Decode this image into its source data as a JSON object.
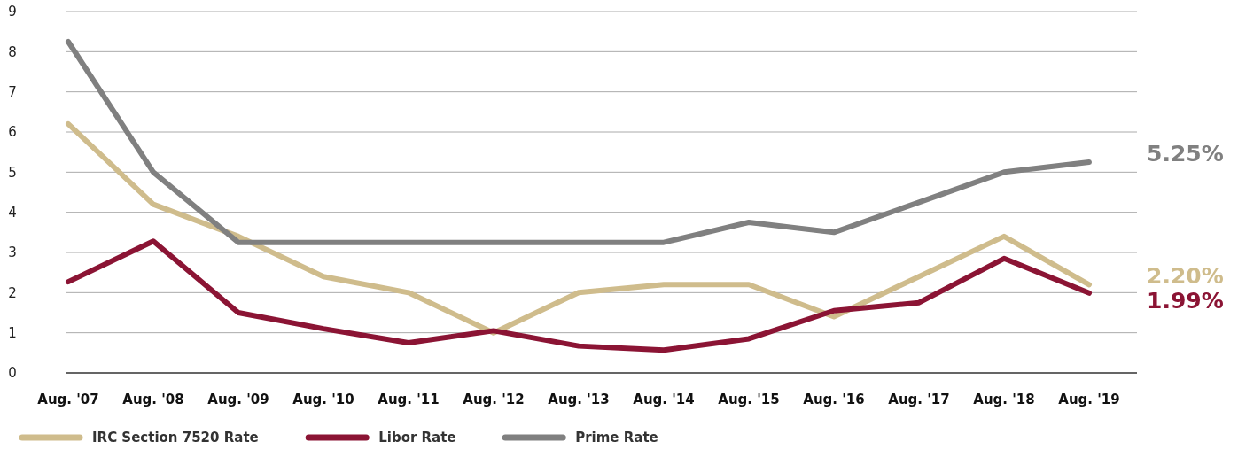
{
  "chart_data": {
    "type": "line",
    "categories": [
      "Aug. '07",
      "Aug. '08",
      "Aug. '09",
      "Aug. '10",
      "Aug. '11",
      "Aug. '12",
      "Aug. '13",
      "Aug. '14",
      "Aug. '15",
      "Aug. '16",
      "Aug. '17",
      "Aug. '18",
      "Aug. '19"
    ],
    "series": [
      {
        "name": "IRC Section 7520 Rate",
        "color": "#cfbc8c",
        "values": [
          6.2,
          4.2,
          3.4,
          2.4,
          2.0,
          1.0,
          2.0,
          2.2,
          2.2,
          1.4,
          2.4,
          3.4,
          2.2
        ]
      },
      {
        "name": "Libor Rate",
        "color": "#8b1434",
        "values": [
          2.27,
          3.28,
          1.5,
          1.1,
          0.75,
          1.05,
          0.67,
          0.57,
          0.85,
          1.55,
          1.75,
          2.85,
          1.99
        ]
      },
      {
        "name": "Prime Rate",
        "color": "#808080",
        "values": [
          8.25,
          5.0,
          3.25,
          3.25,
          3.25,
          3.25,
          3.25,
          3.25,
          3.75,
          3.5,
          4.25,
          5.0,
          5.25
        ]
      }
    ],
    "ylim": [
      0,
      9
    ],
    "yticks": [
      0,
      1,
      2,
      3,
      4,
      5,
      6,
      7,
      8,
      9
    ],
    "grid": "y",
    "legend": "bottom left",
    "marker": "none",
    "line_style": "solid",
    "annotations": [
      {
        "text": "5.25%",
        "x": "Aug. '19",
        "y": 5.25
      },
      {
        "text": "2.20%",
        "x": "Aug. '19",
        "y": 2.2
      },
      {
        "text": "1.99%",
        "x": "Aug. '19",
        "y": 1.99
      }
    ]
  }
}
